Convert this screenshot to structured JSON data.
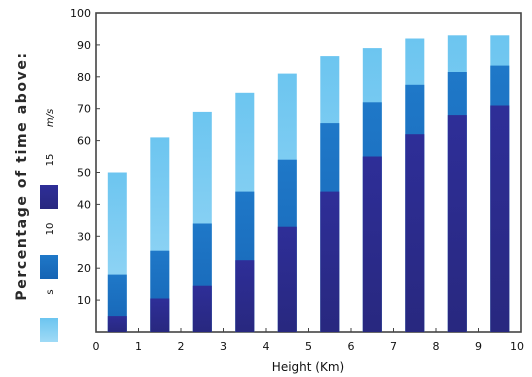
{
  "chart_data": {
    "type": "bar",
    "stacked": false,
    "overlaid": true,
    "categories": [
      "0.5",
      "1.5",
      "2.5",
      "3.5",
      "4.5",
      "5.5",
      "6.5",
      "7.5",
      "8.5",
      "9.5"
    ],
    "series": [
      {
        "name": "s",
        "color": "#4db3e8",
        "values": [
          50,
          61,
          69,
          75,
          81,
          86.5,
          89,
          92,
          93,
          93
        ]
      },
      {
        "name": "10",
        "color": "#1b6fc0",
        "values": [
          18,
          25.5,
          34,
          44,
          54,
          65.5,
          72,
          77.5,
          81.5,
          83.5
        ]
      },
      {
        "name": "15",
        "color": "#2c2c94",
        "values": [
          5,
          10.5,
          14.5,
          22.5,
          33,
          44,
          55,
          62,
          68,
          71
        ]
      }
    ],
    "xlabel": "Height (Km)",
    "ylabel": "Percentage of time above:",
    "legend_unit": "m/s",
    "xlim": [
      0,
      10
    ],
    "ylim": [
      0,
      100
    ],
    "xticks": [
      "0",
      "1",
      "2",
      "3",
      "4",
      "5",
      "6",
      "7",
      "8",
      "9",
      "10"
    ],
    "yticks": [
      "10",
      "20",
      "30",
      "40",
      "50",
      "60",
      "70",
      "80",
      "90",
      "100"
    ],
    "grid": false,
    "legend_position": "left"
  }
}
